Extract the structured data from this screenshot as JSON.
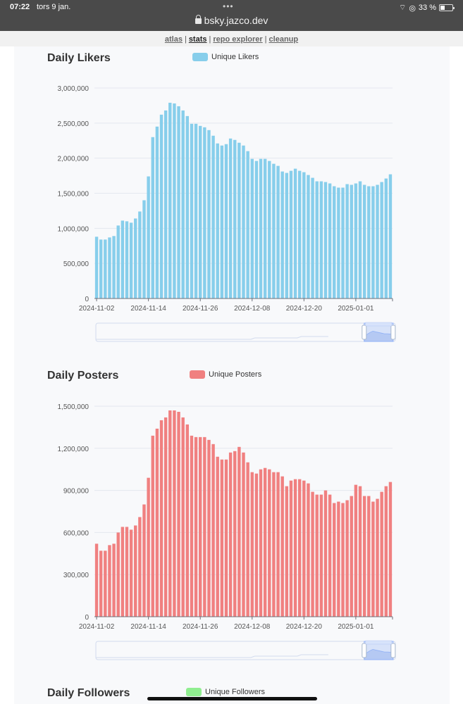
{
  "status_bar": {
    "time": "07:22",
    "date": "tors 9 jan.",
    "url": "bsky.jazco.dev",
    "battery": "33 %",
    "battery_level": 0.33
  },
  "nav": {
    "links": [
      {
        "label": "atlas",
        "active": false
      },
      {
        "label": "stats",
        "active": true
      },
      {
        "label": "repo explorer",
        "active": false
      },
      {
        "label": "cleanup",
        "active": false
      }
    ],
    "separator": "|"
  },
  "colors": {
    "likers": "#87ceeb",
    "posters": "#f08080",
    "followers": "#90ee90"
  },
  "chart_data": [
    {
      "type": "bar",
      "title": "Daily Likers",
      "legend": "Unique Likers",
      "color": "#87ceeb",
      "ylim": [
        0,
        3000000
      ],
      "y_ticks": [
        0,
        500000,
        1000000,
        1500000,
        2000000,
        2500000,
        3000000
      ],
      "y_tick_labels": [
        "0",
        "500,000",
        "1,000,000",
        "1,500,000",
        "2,000,000",
        "2,500,000",
        "3,000,000"
      ],
      "x_tick_labels": [
        "2024-11-02",
        "2024-11-14",
        "2024-11-26",
        "2024-12-08",
        "2024-12-20",
        "2025-01-01"
      ],
      "x_tick_positions": [
        0,
        12,
        24,
        36,
        48,
        60
      ],
      "values": [
        880000,
        840000,
        840000,
        870000,
        890000,
        1040000,
        1110000,
        1100000,
        1080000,
        1140000,
        1240000,
        1400000,
        1740000,
        2300000,
        2450000,
        2620000,
        2680000,
        2790000,
        2780000,
        2740000,
        2680000,
        2600000,
        2490000,
        2490000,
        2460000,
        2440000,
        2400000,
        2320000,
        2210000,
        2180000,
        2200000,
        2280000,
        2260000,
        2220000,
        2180000,
        2100000,
        1990000,
        1960000,
        1990000,
        1990000,
        1960000,
        1920000,
        1890000,
        1810000,
        1790000,
        1820000,
        1850000,
        1820000,
        1800000,
        1760000,
        1720000,
        1670000,
        1670000,
        1660000,
        1640000,
        1600000,
        1580000,
        1580000,
        1630000,
        1620000,
        1640000,
        1670000,
        1620000,
        1600000,
        1600000,
        1620000,
        1660000,
        1710000,
        1770000
      ]
    },
    {
      "type": "bar",
      "title": "Daily Posters",
      "legend": "Unique Posters",
      "color": "#f08080",
      "ylim": [
        0,
        1500000
      ],
      "y_ticks": [
        0,
        300000,
        600000,
        900000,
        1200000,
        1500000
      ],
      "y_tick_labels": [
        "0",
        "300,000",
        "600,000",
        "900,000",
        "1,200,000",
        "1,500,000"
      ],
      "x_tick_labels": [
        "2024-11-02",
        "2024-11-14",
        "2024-11-26",
        "2024-12-08",
        "2024-12-20",
        "2025-01-01"
      ],
      "x_tick_positions": [
        0,
        12,
        24,
        36,
        48,
        60
      ],
      "values": [
        520000,
        470000,
        470000,
        510000,
        520000,
        600000,
        640000,
        640000,
        620000,
        650000,
        710000,
        800000,
        990000,
        1290000,
        1340000,
        1400000,
        1420000,
        1470000,
        1470000,
        1460000,
        1420000,
        1370000,
        1290000,
        1280000,
        1280000,
        1280000,
        1260000,
        1230000,
        1140000,
        1120000,
        1120000,
        1170000,
        1180000,
        1210000,
        1170000,
        1100000,
        1030000,
        1020000,
        1050000,
        1060000,
        1050000,
        1030000,
        1030000,
        1000000,
        930000,
        970000,
        980000,
        980000,
        970000,
        950000,
        890000,
        870000,
        870000,
        900000,
        870000,
        810000,
        820000,
        810000,
        830000,
        860000,
        940000,
        930000,
        860000,
        860000,
        820000,
        840000,
        890000,
        930000,
        960000
      ]
    },
    {
      "type": "bar",
      "title": "Daily Followers",
      "legend": "Unique Followers",
      "color": "#90ee90"
    }
  ]
}
